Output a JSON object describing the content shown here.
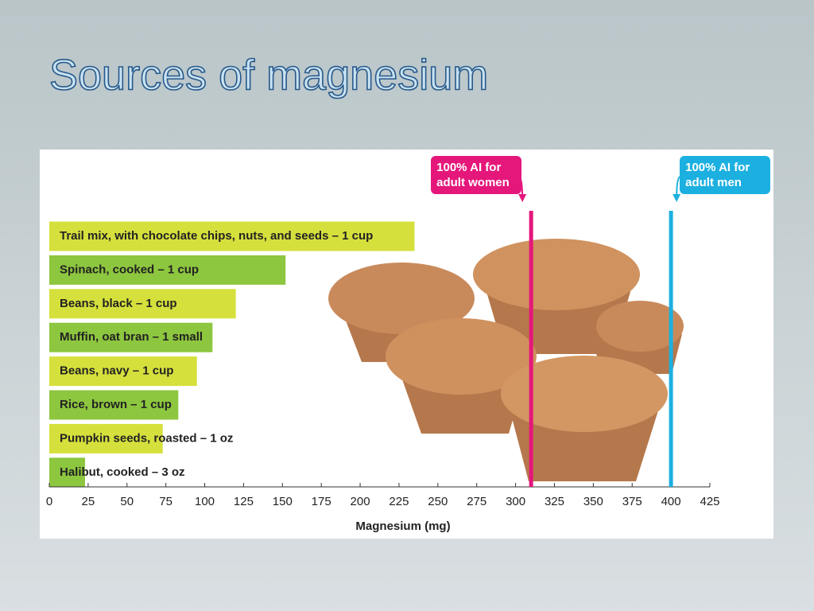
{
  "chart_data": {
    "type": "bar",
    "orientation": "horizontal",
    "title": "Sources of magnesium",
    "xlabel": "Magnesium (mg)",
    "categories": [
      "Trail mix, with chocolate chips, nuts, and seeds – 1 cup",
      "Spinach, cooked – 1 cup",
      "Beans, black – 1 cup",
      "Muffin, oat bran – 1 small",
      "Beans, navy – 1 cup",
      "Rice, brown – 1 cup",
      "Pumpkin seeds, roasted – 1 oz",
      "Halibut, cooked – 3 oz"
    ],
    "values": [
      235,
      152,
      120,
      105,
      95,
      83,
      73,
      23
    ],
    "colors": [
      "#d6e03c",
      "#8dc63f",
      "#d6e03c",
      "#8dc63f",
      "#d6e03c",
      "#8dc63f",
      "#d6e03c",
      "#8dc63f"
    ],
    "xlim": [
      0,
      425
    ],
    "xticks": [
      0,
      25,
      50,
      75,
      100,
      125,
      150,
      175,
      200,
      225,
      250,
      275,
      300,
      325,
      350,
      375,
      400,
      425
    ],
    "reference_lines": [
      {
        "label": "100% AI for adult women",
        "value": 310,
        "color": "#e5177b"
      },
      {
        "label": "100% AI for adult men",
        "value": 400,
        "color": "#1cb0e0"
      }
    ]
  }
}
